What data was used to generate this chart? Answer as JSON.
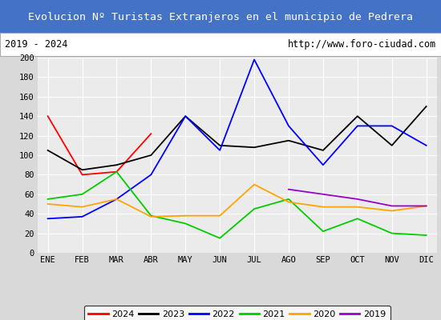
{
  "title": "Evolucion Nº Turistas Extranjeros en el municipio de Pedrera",
  "subtitle_left": "2019 - 2024",
  "subtitle_right": "http://www.foro-ciudad.com",
  "title_bg_color": "#4472c4",
  "title_text_color": "#ffffff",
  "subtitle_bg_color": "#ffffff",
  "plot_bg_color": "#ebebeb",
  "fig_bg_color": "#d9d9d9",
  "months": [
    "ENE",
    "FEB",
    "MAR",
    "ABR",
    "MAY",
    "JUN",
    "JUL",
    "AGO",
    "SEP",
    "OCT",
    "NOV",
    "DIC"
  ],
  "series": {
    "2024": {
      "color": "#ff0000",
      "values": [
        140,
        80,
        83,
        122,
        null,
        null,
        null,
        null,
        null,
        null,
        null,
        null
      ]
    },
    "2023": {
      "color": "#000000",
      "values": [
        105,
        85,
        90,
        100,
        140,
        110,
        108,
        115,
        105,
        140,
        110,
        150
      ]
    },
    "2022": {
      "color": "#0000ff",
      "values": [
        35,
        37,
        55,
        80,
        140,
        105,
        198,
        130,
        90,
        130,
        130,
        110
      ]
    },
    "2021": {
      "color": "#00cc00",
      "values": [
        55,
        60,
        83,
        38,
        30,
        15,
        45,
        55,
        22,
        35,
        20,
        18
      ]
    },
    "2020": {
      "color": "#ffa500",
      "values": [
        50,
        47,
        55,
        37,
        38,
        38,
        70,
        52,
        47,
        47,
        43,
        48
      ]
    },
    "2019": {
      "color": "#9900cc",
      "values": [
        null,
        null,
        null,
        null,
        null,
        null,
        null,
        65,
        60,
        55,
        48,
        48
      ]
    }
  },
  "ylim": [
    0,
    200
  ],
  "yticks": [
    0,
    20,
    40,
    60,
    80,
    100,
    120,
    140,
    160,
    180,
    200
  ],
  "legend_order": [
    "2024",
    "2023",
    "2022",
    "2021",
    "2020",
    "2019"
  ]
}
